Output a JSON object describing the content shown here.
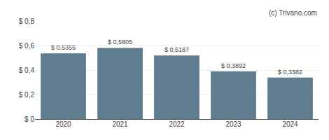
{
  "chart_data": {
    "type": "bar",
    "categories": [
      "2020",
      "2021",
      "2022",
      "2023",
      "2024"
    ],
    "values": [
      0.5355,
      0.5805,
      0.5187,
      0.3892,
      0.3382
    ],
    "value_labels": [
      "$ 0,5355",
      "$ 0,5805",
      "$ 0,5187",
      "$ 0,3892",
      "$ 0,3382"
    ],
    "data_labels": true,
    "color": "#607d8f",
    "ylim": [
      0,
      0.8
    ],
    "yticks": [
      {
        "value": 0,
        "label": "$ 0"
      },
      {
        "value": 0.2,
        "label": "$ 0,2"
      },
      {
        "value": 0.4,
        "label": "$ 0,4"
      },
      {
        "value": 0.6,
        "label": "$ 0,6"
      },
      {
        "value": 0.8,
        "label": "$ 0,8"
      }
    ],
    "grid": true,
    "annotations": [
      "(c) Trivano.com"
    ]
  }
}
